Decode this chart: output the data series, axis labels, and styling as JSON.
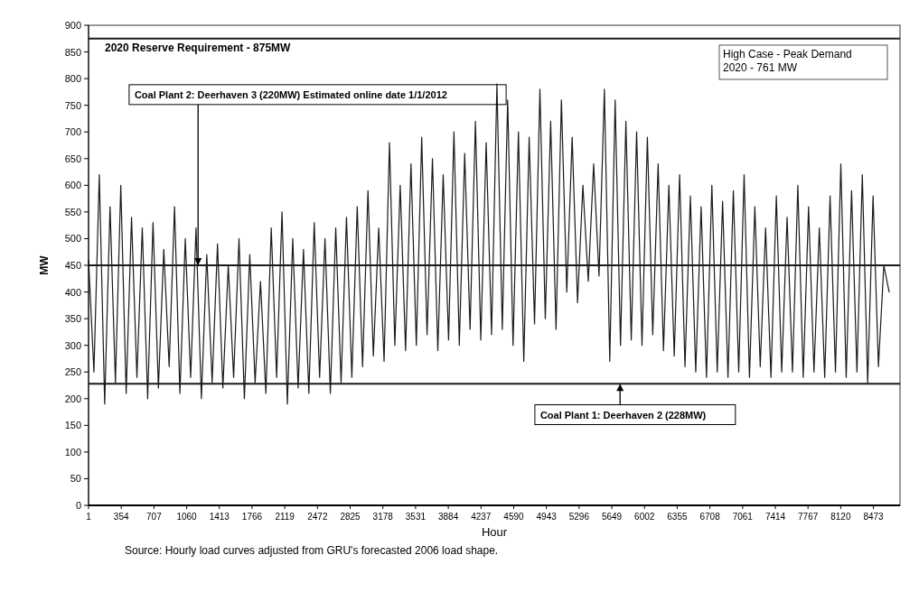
{
  "chart_data": {
    "type": "line",
    "ylabel": "MW",
    "xlabel": "Hour",
    "annotations": [
      "High Case - Peak Demand\n2020 - 761 MW",
      "Source: Hourly load curves adjusted from GRU's forecasted 2006 load shape."
    ],
    "xlim": [
      1,
      8760
    ],
    "xticks": [
      1,
      354,
      707,
      1060,
      1413,
      1766,
      2119,
      2472,
      2825,
      3178,
      3531,
      3884,
      4237,
      4590,
      4943,
      5296,
      5649,
      6002,
      6355,
      6708,
      7061,
      7414,
      7767,
      8120,
      8473
    ],
    "ylim": [
      0,
      900
    ],
    "yticks": [
      0,
      50,
      100,
      150,
      200,
      250,
      300,
      350,
      400,
      450,
      500,
      550,
      600,
      650,
      700,
      750,
      800,
      850,
      900
    ],
    "grid": false,
    "ref_lines": [
      {
        "axis": "y",
        "value": 875,
        "label": "2020 Reserve Requirement - 875MW",
        "color": "#1a1a1a"
      },
      {
        "axis": "y",
        "value": 450,
        "label": "Coal Plant 2: Deerhaven 3 (220MW) Estimated online date 1/1/2012",
        "color": "#1a1a1a"
      },
      {
        "axis": "y",
        "value": 228,
        "label": "Coal Plant 1: Deerhaven 2 (228MW)",
        "color": "#1a1a1a"
      }
    ],
    "series": [
      {
        "color": "#1a1a1a",
        "x": [
          1,
          59,
          117,
          175,
          233,
          291,
          349,
          407,
          465,
          523,
          581,
          639,
          697,
          755,
          813,
          871,
          929,
          987,
          1045,
          1103,
          1161,
          1219,
          1277,
          1335,
          1393,
          1451,
          1509,
          1567,
          1625,
          1683,
          1741,
          1799,
          1857,
          1915,
          1973,
          2031,
          2089,
          2147,
          2205,
          2263,
          2321,
          2379,
          2437,
          2495,
          2553,
          2611,
          2669,
          2727,
          2785,
          2843,
          2901,
          2959,
          3017,
          3075,
          3133,
          3191,
          3249,
          3307,
          3365,
          3423,
          3481,
          3539,
          3597,
          3655,
          3713,
          3771,
          3829,
          3887,
          3945,
          4003,
          4061,
          4119,
          4177,
          4235,
          4293,
          4351,
          4409,
          4467,
          4525,
          4583,
          4641,
          4699,
          4757,
          4815,
          4873,
          4931,
          4989,
          5047,
          5105,
          5163,
          5221,
          5279,
          5337,
          5395,
          5453,
          5511,
          5569,
          5627,
          5685,
          5743,
          5801,
          5859,
          5917,
          5975,
          6033,
          6091,
          6149,
          6207,
          6265,
          6323,
          6381,
          6439,
          6497,
          6555,
          6613,
          6671,
          6729,
          6787,
          6845,
          6903,
          6961,
          7019,
          7077,
          7135,
          7193,
          7251,
          7309,
          7367,
          7425,
          7483,
          7541,
          7599,
          7657,
          7715,
          7773,
          7831,
          7889,
          7947,
          8005,
          8063,
          8121,
          8179,
          8237,
          8295,
          8353,
          8411,
          8469,
          8527,
          8585,
          8643
        ],
        "values": [
          460,
          250,
          620,
          190,
          560,
          230,
          600,
          210,
          540,
          240,
          520,
          200,
          530,
          220,
          480,
          260,
          560,
          210,
          500,
          240,
          520,
          200,
          470,
          230,
          490,
          220,
          450,
          240,
          500,
          200,
          470,
          230,
          420,
          210,
          520,
          240,
          550,
          190,
          500,
          220,
          480,
          210,
          530,
          240,
          500,
          210,
          520,
          230,
          540,
          240,
          560,
          260,
          590,
          280,
          520,
          270,
          680,
          300,
          600,
          290,
          640,
          300,
          690,
          320,
          650,
          290,
          620,
          310,
          700,
          300,
          660,
          330,
          720,
          310,
          680,
          320,
          790,
          330,
          760,
          300,
          700,
          270,
          690,
          340,
          780,
          350,
          720,
          330,
          760,
          400,
          690,
          380,
          600,
          420,
          640,
          430,
          780,
          270,
          760,
          300,
          720,
          310,
          700,
          300,
          690,
          320,
          640,
          290,
          600,
          280,
          620,
          260,
          580,
          250,
          560,
          240,
          600,
          250,
          570,
          240,
          590,
          250,
          620,
          240,
          560,
          260,
          520,
          240,
          580,
          250,
          540,
          250,
          600,
          240,
          560,
          250,
          520,
          240,
          580,
          250,
          640,
          240,
          590,
          250,
          620,
          230,
          580,
          260,
          450,
          400
        ]
      }
    ]
  }
}
